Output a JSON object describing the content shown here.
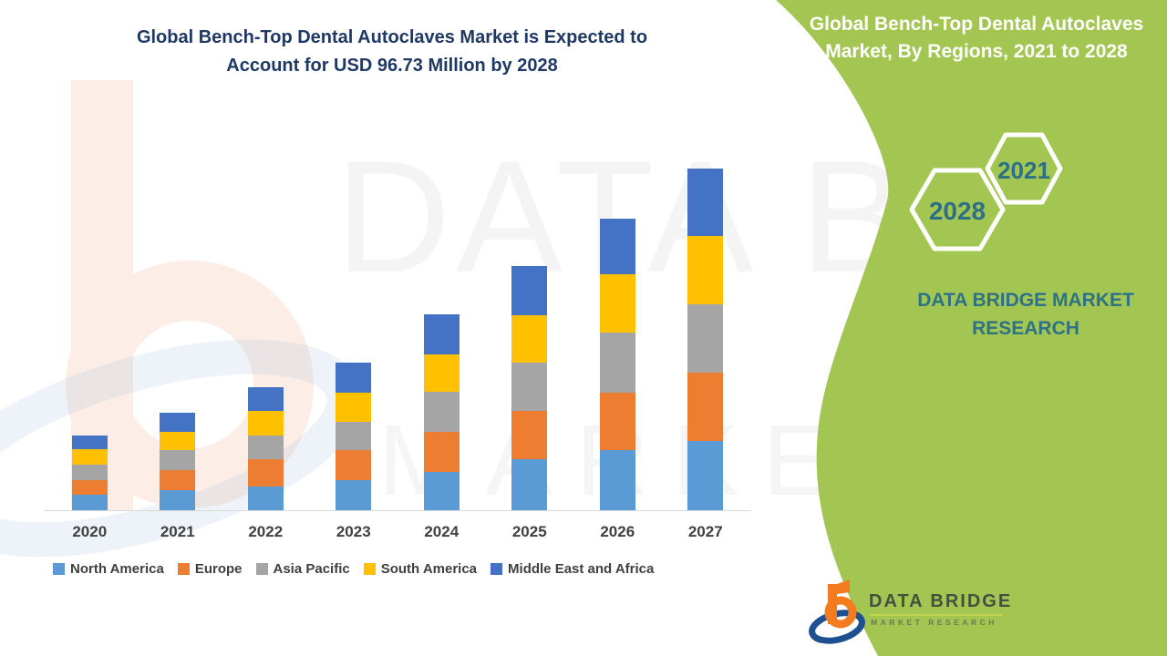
{
  "page": {
    "title_line1": "Global Bench-Top Dental Autoclaves Market is Expected to",
    "title_line2": "Account for USD 96.73 Million by 2028"
  },
  "side_panel": {
    "heading_line1": "Global Bench-Top Dental Autoclaves",
    "heading_line2": "Market, By Regions, 2021 to 2028",
    "hexagons": [
      {
        "label": "2028"
      },
      {
        "label": "2021"
      }
    ],
    "brand_line1": "DATA BRIDGE MARKET",
    "brand_line2": "RESEARCH",
    "logo": {
      "title": "DATA BRIDGE",
      "subtitle": "MARKET RESEARCH"
    },
    "colors": {
      "background": "#a2c651",
      "heading_text": "#ffffff",
      "accent_text": "#2d7286",
      "logo_orange": "#f47b20",
      "logo_blue": "#1d4f91"
    }
  },
  "watermark": {
    "line1": "DATA BRIDGE",
    "line2": "MARKET RESEARCH"
  },
  "chart_data": {
    "type": "bar",
    "stacked": true,
    "title": "Global Bench-Top Dental Autoclaves Market is Expected to Account for USD 96.73 Million by 2028",
    "xlabel": "",
    "ylabel": "",
    "y_axis_visible": false,
    "note": "No y-axis or value labels shown; series values are estimated relative heights (chart pixels), stacked per year",
    "legend_position": "bottom",
    "categories": [
      "2020",
      "2021",
      "2022",
      "2023",
      "2024",
      "2025",
      "2026",
      "2027"
    ],
    "series": [
      {
        "name": "North America",
        "color": "#5B9BD5",
        "values": [
          17,
          22,
          26,
          33,
          42,
          56,
          66,
          76
        ]
      },
      {
        "name": "Europe",
        "color": "#ED7D31",
        "values": [
          16,
          22,
          30,
          33,
          44,
          53,
          63,
          75
        ]
      },
      {
        "name": "Asia Pacific",
        "color": "#A5A5A5",
        "values": [
          17,
          22,
          26,
          31,
          44,
          53,
          66,
          75
        ]
      },
      {
        "name": "South America",
        "color": "#FFC000",
        "values": [
          17,
          20,
          27,
          32,
          41,
          52,
          64,
          75
        ]
      },
      {
        "name": "Middle East and Africa",
        "color": "#4472C4",
        "values": [
          15,
          21,
          26,
          33,
          44,
          54,
          61,
          74
        ]
      }
    ],
    "totals_by_year": [
      82,
      107,
      135,
      162,
      215,
      268,
      320,
      375
    ],
    "ylim": [
      0,
      400
    ]
  }
}
